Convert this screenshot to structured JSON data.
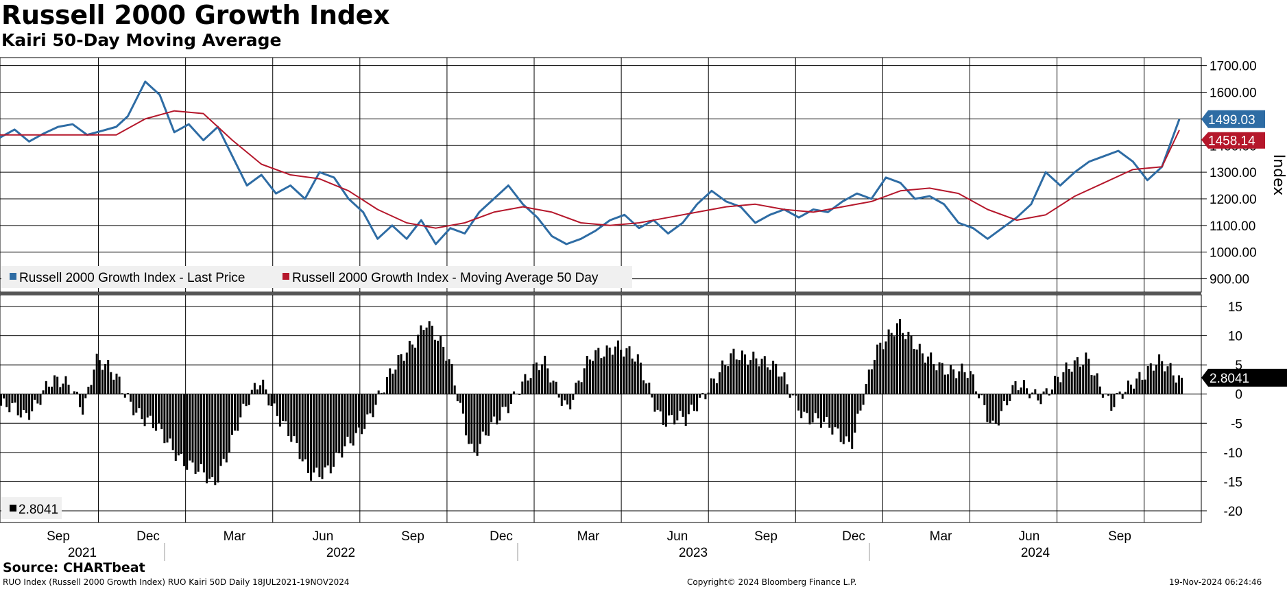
{
  "header": {
    "title": "Russell 2000 Growth Index",
    "subtitle": "Kairi 50-Day Moving Average"
  },
  "footer": {
    "source": "Source: CHARTbeat",
    "left": "RUO Index (Russell 2000 Growth Index) RUO Kairi 50D  Daily 18JUL2021-19NOV2024",
    "center": "Copyright© 2024 Bloomberg Finance L.P.",
    "right": "19-Nov-2024 06:24:46"
  },
  "colors": {
    "price": "#2e6ca4",
    "ma": "#b5172b",
    "bars": "#000000",
    "grid": "#000000"
  },
  "chart_data": [
    {
      "type": "line",
      "ylabel": "Index",
      "ylim": [
        850,
        1730
      ],
      "yticks": [
        "1700.00",
        "1600.00",
        "1500.00",
        "1400.00",
        "1300.00",
        "1200.00",
        "1100.00",
        "1000.00",
        "900.00"
      ],
      "ytick_values": [
        1700,
        1600,
        1500,
        1400,
        1300,
        1200,
        1100,
        1000,
        900
      ],
      "x_range_months": [
        0,
        40.6
      ],
      "legend_position": "bottom-left",
      "series": [
        {
          "name": "Russell 2000 Growth Index - Last Price",
          "color": "#2e6ca4",
          "last_value_label": "1499.03",
          "points": [
            [
              0,
              1430
            ],
            [
              0.5,
              1460
            ],
            [
              1,
              1415
            ],
            [
              1.5,
              1445
            ],
            [
              2,
              1470
            ],
            [
              2.5,
              1480
            ],
            [
              3,
              1440
            ],
            [
              3.5,
              1455
            ],
            [
              4,
              1470
            ],
            [
              4.4,
              1510
            ],
            [
              5,
              1640
            ],
            [
              5.5,
              1590
            ],
            [
              6,
              1450
            ],
            [
              6.5,
              1480
            ],
            [
              7,
              1420
            ],
            [
              7.5,
              1470
            ],
            [
              8,
              1360
            ],
            [
              8.5,
              1250
            ],
            [
              9,
              1290
            ],
            [
              9.5,
              1220
            ],
            [
              10,
              1250
            ],
            [
              10.5,
              1200
            ],
            [
              11,
              1300
            ],
            [
              11.5,
              1280
            ],
            [
              12,
              1200
            ],
            [
              12.5,
              1150
            ],
            [
              13,
              1050
            ],
            [
              13.5,
              1100
            ],
            [
              14,
              1050
            ],
            [
              14.5,
              1120
            ],
            [
              15,
              1030
            ],
            [
              15.5,
              1090
            ],
            [
              16,
              1070
            ],
            [
              16.5,
              1150
            ],
            [
              17,
              1200
            ],
            [
              17.5,
              1250
            ],
            [
              18,
              1180
            ],
            [
              18.5,
              1130
            ],
            [
              19,
              1060
            ],
            [
              19.5,
              1030
            ],
            [
              20,
              1050
            ],
            [
              20.5,
              1080
            ],
            [
              21,
              1120
            ],
            [
              21.5,
              1140
            ],
            [
              22,
              1090
            ],
            [
              22.5,
              1120
            ],
            [
              23,
              1070
            ],
            [
              23.5,
              1110
            ],
            [
              24,
              1180
            ],
            [
              24.5,
              1230
            ],
            [
              25,
              1190
            ],
            [
              25.5,
              1170
            ],
            [
              26,
              1110
            ],
            [
              26.5,
              1140
            ],
            [
              27,
              1160
            ],
            [
              27.5,
              1130
            ],
            [
              28,
              1160
            ],
            [
              28.5,
              1150
            ],
            [
              29,
              1190
            ],
            [
              29.5,
              1220
            ],
            [
              30,
              1200
            ],
            [
              30.5,
              1280
            ],
            [
              31,
              1260
            ],
            [
              31.5,
              1200
            ],
            [
              32,
              1210
            ],
            [
              32.5,
              1180
            ],
            [
              33,
              1110
            ],
            [
              33.5,
              1090
            ],
            [
              34,
              1050
            ],
            [
              34.5,
              1090
            ],
            [
              35,
              1130
            ],
            [
              35.5,
              1180
            ],
            [
              36,
              1300
            ],
            [
              36.5,
              1250
            ],
            [
              37,
              1300
            ],
            [
              37.5,
              1340
            ],
            [
              38,
              1360
            ],
            [
              38.5,
              1380
            ],
            [
              39,
              1340
            ],
            [
              39.5,
              1270
            ],
            [
              40,
              1320
            ],
            [
              40.6,
              1499
            ]
          ]
        },
        {
          "name": "Russell 2000 Growth Index - Moving Average 50 Day",
          "color": "#b5172b",
          "last_value_label": "1458.14",
          "points": [
            [
              0,
              1440
            ],
            [
              2,
              1440
            ],
            [
              4,
              1440
            ],
            [
              5,
              1500
            ],
            [
              6,
              1530
            ],
            [
              7,
              1520
            ],
            [
              8,
              1420
            ],
            [
              9,
              1330
            ],
            [
              10,
              1290
            ],
            [
              11,
              1275
            ],
            [
              12,
              1230
            ],
            [
              13,
              1160
            ],
            [
              14,
              1110
            ],
            [
              15,
              1090
            ],
            [
              16,
              1110
            ],
            [
              17,
              1150
            ],
            [
              18,
              1170
            ],
            [
              19,
              1150
            ],
            [
              20,
              1110
            ],
            [
              21,
              1100
            ],
            [
              22,
              1110
            ],
            [
              23,
              1130
            ],
            [
              24,
              1150
            ],
            [
              25,
              1170
            ],
            [
              26,
              1180
            ],
            [
              27,
              1160
            ],
            [
              28,
              1150
            ],
            [
              29,
              1170
            ],
            [
              30,
              1190
            ],
            [
              31,
              1230
            ],
            [
              32,
              1240
            ],
            [
              33,
              1220
            ],
            [
              34,
              1160
            ],
            [
              35,
              1120
            ],
            [
              36,
              1140
            ],
            [
              37,
              1210
            ],
            [
              38,
              1260
            ],
            [
              39,
              1310
            ],
            [
              40,
              1320
            ],
            [
              40.6,
              1458
            ]
          ]
        }
      ]
    },
    {
      "type": "bar",
      "ylim": [
        -22,
        17
      ],
      "yticks": [
        "15",
        "10",
        "5",
        "0",
        "-5",
        "-10",
        "-15",
        "-20"
      ],
      "ytick_values": [
        15,
        10,
        5,
        0,
        -5,
        -10,
        -15,
        -20
      ],
      "legend_position": "bottom-left",
      "series": [
        {
          "name": "",
          "color": "#000000",
          "last_value_label": "2.8041",
          "points": [
            [
              0,
              -2
            ],
            [
              1,
              -4
            ],
            [
              2,
              2
            ],
            [
              3,
              1
            ],
            [
              3.5,
              -2
            ],
            [
              4,
              6
            ],
            [
              5,
              2
            ],
            [
              6,
              -4
            ],
            [
              7,
              -8
            ],
            [
              8,
              -12
            ],
            [
              9,
              -16
            ],
            [
              10,
              -5
            ],
            [
              11,
              2
            ],
            [
              12,
              -5
            ],
            [
              13,
              -14
            ],
            [
              14,
              -12
            ],
            [
              15,
              -8
            ],
            [
              16,
              0
            ],
            [
              17,
              6
            ],
            [
              18,
              13
            ],
            [
              19,
              5
            ],
            [
              20,
              -10
            ],
            [
              21,
              -5
            ],
            [
              22,
              2
            ],
            [
              23,
              5
            ],
            [
              24,
              -2
            ],
            [
              25,
              6
            ],
            [
              26,
              9
            ],
            [
              27,
              5
            ],
            [
              28,
              -4
            ],
            [
              29,
              -5
            ],
            [
              30,
              2
            ],
            [
              31,
              6
            ],
            [
              32,
              7
            ],
            [
              33,
              3
            ],
            [
              34,
              -3
            ],
            [
              35,
              -6
            ],
            [
              36,
              -8
            ],
            [
              37,
              6
            ],
            [
              38,
              13
            ],
            [
              39,
              6
            ],
            [
              40,
              5
            ],
            [
              41,
              3
            ],
            [
              42,
              -5
            ],
            [
              43,
              1
            ],
            [
              44,
              0
            ],
            [
              45,
              3
            ],
            [
              46,
              7
            ],
            [
              47,
              -3
            ],
            [
              48,
              3
            ],
            [
              49,
              5
            ],
            [
              50,
              2.8
            ]
          ]
        }
      ]
    }
  ],
  "x_axis": {
    "month_labels": [
      "Sep",
      "Dec",
      "Mar",
      "Jun",
      "Sep",
      "Dec",
      "Mar",
      "Jun",
      "Sep",
      "Dec",
      "Mar",
      "Jun",
      "Sep"
    ],
    "year_labels": [
      "2021",
      "2022",
      "2023",
      "2024"
    ]
  }
}
